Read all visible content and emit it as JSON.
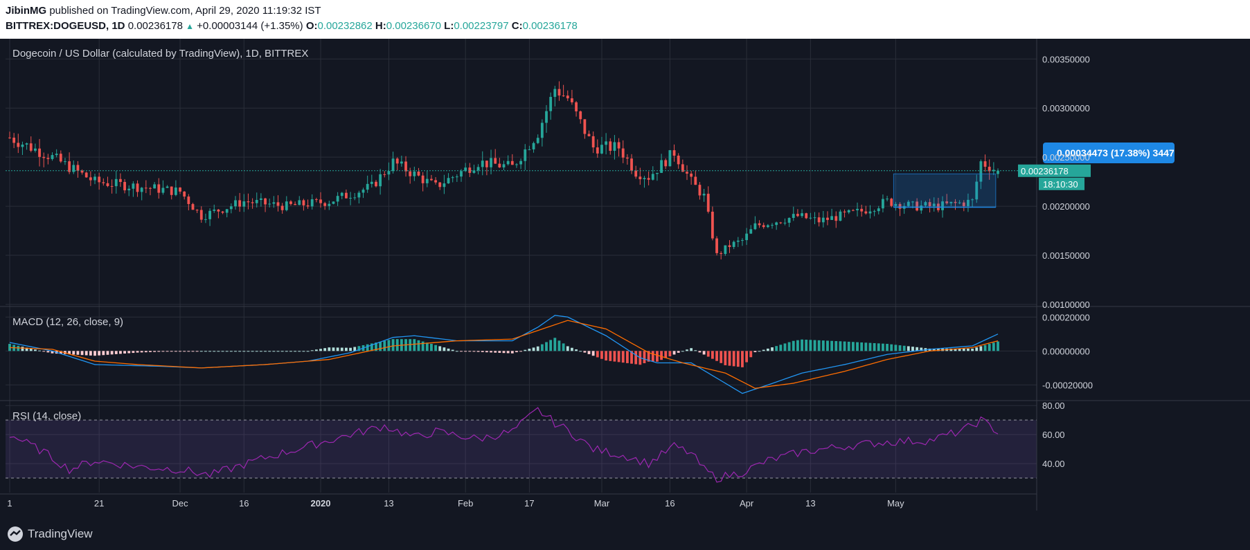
{
  "header": {
    "publisher": "JibinMG",
    "published_text": "published on TradingView.com, April 29, 2020 11:19:32 IST",
    "symbol": "BITTREX:DOGEUSD, 1D",
    "last": "0.00236178",
    "arrow": "▲",
    "change": "+0.00003144 (+1.35%)",
    "o_label": "O:",
    "o_value": "0.00232862",
    "h_label": "H:",
    "h_value": "0.00236670",
    "l_label": "L:",
    "l_value": "0.00223797",
    "c_label": "C:",
    "c_value": "0.00236178"
  },
  "footer": {
    "brand": "TradingView",
    "brand_icon": "tradingview-logo-icon"
  },
  "chart_data": {
    "type": "candlestick",
    "title": "Dogecoin / US Dollar (calculated by TradingView), 1D, BITTREX",
    "ylim": [
      0.001,
      0.00365
    ],
    "y_ticks": [
      "0.00350000",
      "0.00300000",
      "0.00250000",
      "0.00200000",
      "0.00150000",
      "0.00100000"
    ],
    "x_tick_labels": [
      "1",
      "21",
      "Dec",
      "16",
      "2020",
      "13",
      "Feb",
      "17",
      "Mar",
      "16",
      "Apr",
      "13",
      "May"
    ],
    "price_label": "0.00236178",
    "countdown_label": "18:10:30",
    "measure_label": "0.00034473 (17.38%) 3447",
    "colors": {
      "up": "#26a69a",
      "down": "#ef5350",
      "background": "#131722",
      "grid": "#2a2e39",
      "measure": "#1e88e5"
    },
    "closes_anchor": [
      [
        0,
        0.0027
      ],
      [
        10,
        0.0025
      ],
      [
        20,
        0.00225
      ],
      [
        30,
        0.0022
      ],
      [
        40,
        0.00215
      ],
      [
        45,
        0.0019
      ],
      [
        55,
        0.00205
      ],
      [
        65,
        0.002
      ],
      [
        75,
        0.00205
      ],
      [
        85,
        0.0022
      ],
      [
        90,
        0.00245
      ],
      [
        100,
        0.0022
      ],
      [
        110,
        0.00245
      ],
      [
        118,
        0.0024
      ],
      [
        124,
        0.00275
      ],
      [
        128,
        0.0032
      ],
      [
        131,
        0.0031
      ],
      [
        137,
        0.0026
      ],
      [
        143,
        0.0026
      ],
      [
        147,
        0.00235
      ],
      [
        150,
        0.0023
      ],
      [
        156,
        0.00255
      ],
      [
        160,
        0.00225
      ],
      [
        163,
        0.0021
      ],
      [
        166,
        0.0015
      ],
      [
        169,
        0.0016
      ],
      [
        172,
        0.00165
      ],
      [
        175,
        0.0018
      ],
      [
        180,
        0.00185
      ],
      [
        185,
        0.0019
      ],
      [
        190,
        0.00185
      ],
      [
        200,
        0.00195
      ],
      [
        206,
        0.00205
      ],
      [
        212,
        0.002
      ],
      [
        218,
        0.002
      ],
      [
        226,
        0.00205
      ],
      [
        228,
        0.00245
      ],
      [
        232,
        0.00236
      ]
    ],
    "macd": {
      "label": "MACD (12, 26, close, 9)",
      "ylim": [
        -0.00028,
        0.00025
      ],
      "y_ticks": [
        "0.00020000",
        "0.00000000",
        "-0.00020000"
      ],
      "macd_anchor": [
        [
          0,
          5e-05
        ],
        [
          10,
          0.0
        ],
        [
          20,
          -8e-05
        ],
        [
          35,
          -9e-05
        ],
        [
          45,
          -0.0001
        ],
        [
          60,
          -8e-05
        ],
        [
          70,
          -6e-05
        ],
        [
          80,
          -1e-05
        ],
        [
          90,
          8e-05
        ],
        [
          95,
          9e-05
        ],
        [
          105,
          6e-05
        ],
        [
          118,
          6e-05
        ],
        [
          124,
          0.00014
        ],
        [
          128,
          0.00021
        ],
        [
          131,
          0.0002
        ],
        [
          140,
          9e-05
        ],
        [
          148,
          -4e-05
        ],
        [
          152,
          -7e-05
        ],
        [
          160,
          -7e-05
        ],
        [
          166,
          -0.00016
        ],
        [
          172,
          -0.00025
        ],
        [
          178,
          -0.0002
        ],
        [
          186,
          -0.00013
        ],
        [
          196,
          -8e-05
        ],
        [
          206,
          -2e-05
        ],
        [
          216,
          1e-05
        ],
        [
          226,
          3e-05
        ],
        [
          232,
          0.0001
        ]
      ],
      "signal_anchor": [
        [
          0,
          2e-05
        ],
        [
          10,
          1e-05
        ],
        [
          20,
          -6e-05
        ],
        [
          30,
          -8e-05
        ],
        [
          45,
          -0.0001
        ],
        [
          60,
          -8e-05
        ],
        [
          75,
          -5e-05
        ],
        [
          90,
          3e-05
        ],
        [
          105,
          6e-05
        ],
        [
          118,
          7e-05
        ],
        [
          131,
          0.00018
        ],
        [
          140,
          0.00013
        ],
        [
          150,
          -1e-05
        ],
        [
          158,
          -7e-05
        ],
        [
          168,
          -0.00013
        ],
        [
          175,
          -0.00022
        ],
        [
          184,
          -0.00019
        ],
        [
          196,
          -0.00012
        ],
        [
          206,
          -5e-05
        ],
        [
          216,
          0.0
        ],
        [
          226,
          2e-05
        ],
        [
          232,
          6e-05
        ]
      ]
    },
    "rsi": {
      "label": "RSI (14, close)",
      "ylim": [
        20,
        82
      ],
      "y_ticks": [
        "80.00",
        "60.00",
        "40.00"
      ],
      "bands": [
        70,
        30
      ],
      "anchor": [
        [
          0,
          60
        ],
        [
          8,
          48
        ],
        [
          14,
          36
        ],
        [
          20,
          42
        ],
        [
          30,
          38
        ],
        [
          40,
          36
        ],
        [
          47,
          32
        ],
        [
          60,
          44
        ],
        [
          70,
          52
        ],
        [
          80,
          60
        ],
        [
          88,
          66
        ],
        [
          95,
          58
        ],
        [
          100,
          62
        ],
        [
          110,
          57
        ],
        [
          118,
          62
        ],
        [
          124,
          77
        ],
        [
          128,
          68
        ],
        [
          131,
          63
        ],
        [
          137,
          50
        ],
        [
          145,
          45
        ],
        [
          150,
          40
        ],
        [
          156,
          52
        ],
        [
          160,
          47
        ],
        [
          163,
          36
        ],
        [
          166,
          30
        ],
        [
          172,
          34
        ],
        [
          178,
          42
        ],
        [
          186,
          48
        ],
        [
          196,
          52
        ],
        [
          206,
          55
        ],
        [
          216,
          56
        ],
        [
          224,
          63
        ],
        [
          228,
          70
        ],
        [
          232,
          62
        ]
      ]
    }
  }
}
